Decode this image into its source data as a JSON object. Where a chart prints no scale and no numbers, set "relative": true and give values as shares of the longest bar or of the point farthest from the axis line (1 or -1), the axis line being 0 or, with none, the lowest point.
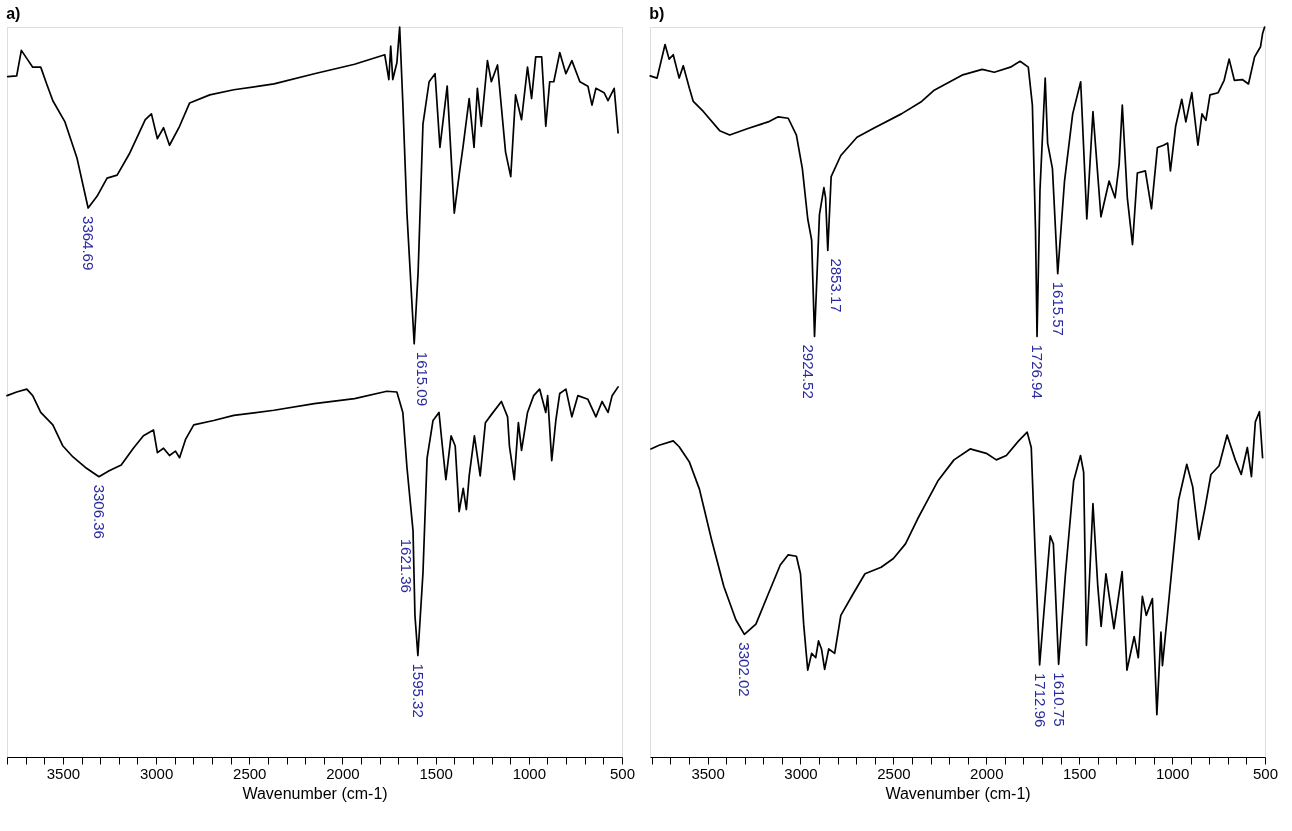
{
  "chart_data": [
    {
      "type": "line",
      "title": "a)",
      "xlabel": "Wavenumber (cm-1)",
      "relative": true,
      "xlim": [
        3800,
        500
      ],
      "xticks": [
        {
          "value": 3800,
          "label": null
        },
        {
          "value": 3700,
          "label": null
        },
        {
          "value": 3600,
          "label": null
        },
        3500,
        {
          "value": 3400,
          "label": null
        },
        {
          "value": 3300,
          "label": null
        },
        {
          "value": 3200,
          "label": null
        },
        {
          "value": 3100,
          "label": null
        },
        3000,
        {
          "value": 2900,
          "label": null
        },
        {
          "value": 2800,
          "label": null
        },
        {
          "value": 2700,
          "label": null
        },
        {
          "value": 2600,
          "label": null
        },
        2500,
        {
          "value": 2400,
          "label": null
        },
        {
          "value": 2300,
          "label": null
        },
        {
          "value": 2200,
          "label": null
        },
        {
          "value": 2100,
          "label": null
        },
        2000,
        {
          "value": 1900,
          "label": null
        },
        {
          "value": 1800,
          "label": null
        },
        {
          "value": 1700,
          "label": null
        },
        {
          "value": 1600,
          "label": null
        },
        1500,
        {
          "value": 1400,
          "label": null
        },
        {
          "value": 1300,
          "label": null
        },
        {
          "value": 1200,
          "label": null
        },
        {
          "value": 1100,
          "label": null
        },
        1000,
        {
          "value": 900,
          "label": null
        },
        {
          "value": 800,
          "label": null
        },
        {
          "value": 700,
          "label": null
        },
        {
          "value": 600,
          "label": null
        },
        500
      ],
      "series": [
        {
          "color": "#000000",
          "x": [
            3796,
            3748,
            3723,
            3694,
            3662,
            3619,
            3587,
            3554,
            3489,
            3425,
            3364.69,
            3317,
            3263,
            3209,
            3144,
            3058,
            3025,
            2993,
            2960,
            2928,
            2874,
            2820,
            2712,
            2583,
            2367,
            2151,
            1935,
            1773,
            1751,
            1741,
            1730,
            1708,
            1693,
            1676,
            1654,
            1615.09,
            1594,
            1568,
            1535,
            1503,
            1477,
            1438,
            1400,
            1374,
            1352,
            1320,
            1294,
            1276,
            1255,
            1222,
            1201,
            1168,
            1125,
            1097,
            1071,
            1039,
            1007,
            985,
            963,
            931,
            909,
            888,
            866,
            834,
            801,
            769,
            726,
            683,
            661,
            640,
            596,
            575,
            542,
            521
          ],
          "values": [
            0.932,
            0.933,
            0.968,
            0.957,
            0.945,
            0.945,
            0.922,
            0.899,
            0.87,
            0.821,
            0.752,
            0.768,
            0.793,
            0.797,
            0.826,
            0.873,
            0.881,
            0.847,
            0.862,
            0.838,
            0.864,
            0.896,
            0.907,
            0.914,
            0.922,
            0.936,
            0.949,
            0.962,
            0.928,
            0.974,
            0.928,
            0.951,
            1.0,
            0.896,
            0.745,
            0.566,
            0.664,
            0.867,
            0.925,
            0.936,
            0.835,
            0.919,
            0.745,
            0.797,
            0.838,
            0.902,
            0.835,
            0.916,
            0.864,
            0.954,
            0.925,
            0.948,
            0.829,
            0.795,
            0.907,
            0.873,
            0.945,
            0.902,
            0.959,
            0.959,
            0.864,
            0.925,
            0.925,
            0.965,
            0.936,
            0.954,
            0.925,
            0.919,
            0.893,
            0.916,
            0.91,
            0.899,
            0.916,
            0.855
          ]
        },
        {
          "color": "#000000",
          "x": [
            3800,
            3748,
            3694,
            3662,
            3619,
            3554,
            3500,
            3446,
            3381,
            3306.36,
            3252,
            3187,
            3122,
            3068,
            3014,
            2993,
            2960,
            2928,
            2896,
            2874,
            2842,
            2798,
            2691,
            2583,
            2367,
            2151,
            1935,
            1762,
            1708,
            1676,
            1654,
            1621.36,
            1611,
            1595.32,
            1568,
            1546,
            1514,
            1482,
            1464,
            1445,
            1417,
            1395,
            1374,
            1352,
            1335,
            1320,
            1292,
            1261,
            1233,
            1201,
            1147,
            1114,
            1104,
            1078,
            1056,
            1039,
            1007,
            974,
            942,
            909,
            899,
            877,
            855,
            834,
            801,
            769,
            737,
            683,
            640,
            607,
            575,
            553,
            521
          ],
          "values": [
            0.495,
            0.5,
            0.504,
            0.495,
            0.472,
            0.455,
            0.426,
            0.411,
            0.397,
            0.384,
            0.392,
            0.4,
            0.423,
            0.44,
            0.448,
            0.417,
            0.423,
            0.413,
            0.419,
            0.41,
            0.435,
            0.455,
            0.461,
            0.468,
            0.475,
            0.484,
            0.491,
            0.501,
            0.5,
            0.472,
            0.397,
            0.31,
            0.194,
            0.139,
            0.252,
            0.409,
            0.461,
            0.472,
            0.426,
            0.38,
            0.44,
            0.426,
            0.336,
            0.368,
            0.339,
            0.385,
            0.44,
            0.385,
            0.458,
            0.469,
            0.487,
            0.466,
            0.426,
            0.38,
            0.458,
            0.42,
            0.472,
            0.495,
            0.504,
            0.472,
            0.495,
            0.406,
            0.461,
            0.498,
            0.504,
            0.466,
            0.495,
            0.49,
            0.466,
            0.487,
            0.472,
            0.495,
            0.507
          ]
        }
      ],
      "annotations": [
        {
          "text": "3364.69",
          "x": 3364.69,
          "y": 0.752
        },
        {
          "text": "1615.09",
          "x": 1615.09,
          "y": 0.566
        },
        {
          "text": "3306.36",
          "x": 3306.36,
          "y": 0.384
        },
        {
          "text": "1621.36",
          "x": 1621.36,
          "y": 0.31
        },
        {
          "text": "1595.32",
          "x": 1595.32,
          "y": 0.139
        }
      ]
    },
    {
      "type": "line",
      "title": "b)",
      "xlabel": "Wavenumber (cm-1)",
      "relative": true,
      "xlim": [
        3810,
        500
      ],
      "xticks": [
        {
          "value": 3800,
          "label": null
        },
        {
          "value": 3700,
          "label": null
        },
        {
          "value": 3600,
          "label": null
        },
        3500,
        {
          "value": 3400,
          "label": null
        },
        {
          "value": 3300,
          "label": null
        },
        {
          "value": 3200,
          "label": null
        },
        {
          "value": 3100,
          "label": null
        },
        3000,
        {
          "value": 2900,
          "label": null
        },
        {
          "value": 2800,
          "label": null
        },
        {
          "value": 2700,
          "label": null
        },
        {
          "value": 2600,
          "label": null
        },
        2500,
        {
          "value": 2400,
          "label": null
        },
        {
          "value": 2300,
          "label": null
        },
        {
          "value": 2200,
          "label": null
        },
        {
          "value": 2100,
          "label": null
        },
        2000,
        {
          "value": 1900,
          "label": null
        },
        {
          "value": 1800,
          "label": null
        },
        {
          "value": 1700,
          "label": null
        },
        {
          "value": 1600,
          "label": null
        },
        1500,
        {
          "value": 1400,
          "label": null
        },
        {
          "value": 1300,
          "label": null
        },
        {
          "value": 1200,
          "label": null
        },
        {
          "value": 1100,
          "label": null
        },
        1000,
        {
          "value": 900,
          "label": null
        },
        {
          "value": 800,
          "label": null
        },
        {
          "value": 700,
          "label": null
        },
        {
          "value": 600,
          "label": null
        },
        500
      ],
      "series": [
        {
          "color": "#000000",
          "x": [
            3809,
            3772,
            3729,
            3707,
            3685,
            3653,
            3631,
            3598,
            3577,
            3522,
            3435,
            3381,
            3283,
            3174,
            3120,
            3066,
            3022,
            2990,
            2961,
            2940,
            2924.52,
            2898,
            2874,
            2865,
            2853.17,
            2835,
            2783,
            2696,
            2609,
            2457,
            2348,
            2283,
            2131,
            2022,
            1957,
            1870,
            1818,
            1774,
            1752,
            1735,
            1726.94,
            1711,
            1683,
            1670,
            1644,
            1615.57,
            1579,
            1535,
            1492,
            1459,
            1426,
            1383,
            1339,
            1307,
            1285,
            1268,
            1241,
            1213,
            1187,
            1144,
            1111,
            1079,
            1046,
            1024,
            1009,
            981,
            948,
            926,
            894,
            861,
            839,
            818,
            796,
            752,
            720,
            693,
            665,
            622,
            589,
            556,
            524,
            513,
            502
          ],
          "values": [
            0.933,
            0.93,
            0.976,
            0.956,
            0.962,
            0.93,
            0.947,
            0.916,
            0.898,
            0.884,
            0.858,
            0.852,
            0.861,
            0.87,
            0.877,
            0.875,
            0.852,
            0.806,
            0.737,
            0.708,
            0.576,
            0.743,
            0.78,
            0.766,
            0.694,
            0.795,
            0.824,
            0.849,
            0.861,
            0.881,
            0.898,
            0.913,
            0.934,
            0.942,
            0.938,
            0.945,
            0.953,
            0.945,
            0.893,
            0.72,
            0.576,
            0.777,
            0.93,
            0.841,
            0.806,
            0.662,
            0.789,
            0.881,
            0.925,
            0.737,
            0.884,
            0.74,
            0.789,
            0.766,
            0.812,
            0.893,
            0.766,
            0.702,
            0.8,
            0.803,
            0.751,
            0.835,
            0.838,
            0.841,
            0.803,
            0.864,
            0.901,
            0.87,
            0.91,
            0.838,
            0.881,
            0.872,
            0.907,
            0.91,
            0.927,
            0.956,
            0.927,
            0.928,
            0.922,
            0.959,
            0.973,
            0.991,
            1.0
          ]
        },
        {
          "color": "#000000",
          "x": [
            3805,
            3761,
            3685,
            3653,
            3598,
            3544,
            3479,
            3413,
            3348,
            3302.02,
            3240,
            3174,
            3109,
            3066,
            3022,
            3000,
            2983,
            2961,
            2940,
            2918,
            2903,
            2887,
            2870,
            2848,
            2816,
            2783,
            2718,
            2653,
            2566,
            2500,
            2435,
            2370,
            2261,
            2174,
            2087,
            2000,
            1946,
            1892,
            1826,
            1780,
            1758,
            1737,
            1712.96,
            1682,
            1656,
            1639,
            1610.75,
            1574,
            1530,
            1493,
            1476,
            1461,
            1426,
            1400,
            1382,
            1356,
            1313,
            1269,
            1243,
            1204,
            1182,
            1160,
            1139,
            1106,
            1082,
            1060,
            1052,
            1008,
            965,
            921,
            889,
            856,
            823,
            791,
            747,
            704,
            660,
            628,
            595,
            573,
            552,
            530,
            513
          ],
          "values": [
            0.422,
            0.427,
            0.433,
            0.425,
            0.404,
            0.367,
            0.298,
            0.234,
            0.188,
            0.168,
            0.182,
            0.223,
            0.263,
            0.277,
            0.275,
            0.251,
            0.182,
            0.119,
            0.142,
            0.136,
            0.159,
            0.148,
            0.12,
            0.148,
            0.142,
            0.194,
            0.223,
            0.251,
            0.26,
            0.272,
            0.292,
            0.326,
            0.378,
            0.407,
            0.422,
            0.416,
            0.407,
            0.413,
            0.433,
            0.445,
            0.424,
            0.28,
            0.126,
            0.223,
            0.303,
            0.292,
            0.127,
            0.251,
            0.378,
            0.413,
            0.39,
            0.153,
            0.347,
            0.234,
            0.179,
            0.251,
            0.176,
            0.254,
            0.119,
            0.165,
            0.136,
            0.22,
            0.194,
            0.217,
            0.058,
            0.171,
            0.125,
            0.24,
            0.352,
            0.401,
            0.37,
            0.298,
            0.341,
            0.387,
            0.399,
            0.441,
            0.407,
            0.387,
            0.424,
            0.384,
            0.459,
            0.473,
            0.41
          ]
        }
      ],
      "annotations": [
        {
          "text": "2924.52",
          "x": 2924.52,
          "y": 0.576
        },
        {
          "text": "2853.17",
          "x": 2853.17,
          "y": 0.694
        },
        {
          "text": "1726.94",
          "x": 1726.94,
          "y": 0.576
        },
        {
          "text": "1615.57",
          "x": 1615.57,
          "y": 0.662
        },
        {
          "text": "3302.02",
          "x": 3302.02,
          "y": 0.168
        },
        {
          "text": "1712.96",
          "x": 1712.96,
          "y": 0.126
        },
        {
          "text": "1610.75",
          "x": 1610.75,
          "y": 0.127
        }
      ]
    }
  ]
}
